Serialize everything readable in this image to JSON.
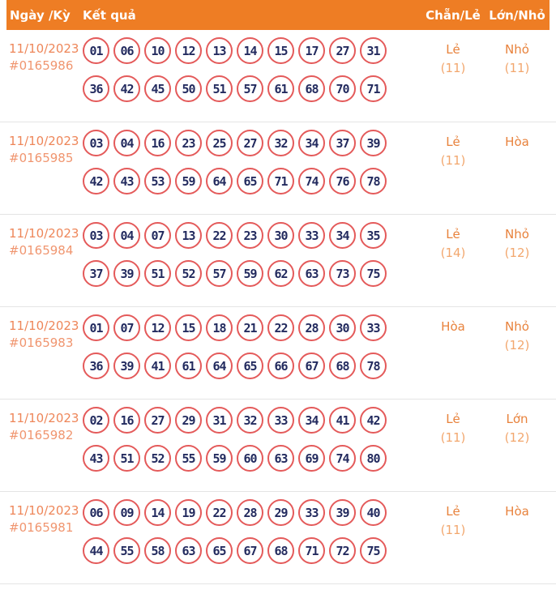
{
  "header": {
    "col_date": "Ngày /Kỳ",
    "col_result": "Kết quả",
    "col_chanle": "Chẵn/Lẻ",
    "col_lonnho": "Lớn/Nhỏ"
  },
  "colors": {
    "header_bg": "#ee7d24",
    "header_text": "#ffffff",
    "ball_border": "#e45a5a",
    "ball_number": "#232b5f",
    "date_text": "#ee8659",
    "value_label": "#e8823c",
    "value_count": "#f2a76e",
    "row_divider": "#e4e4e4"
  },
  "rows": [
    {
      "date": "11/10/2023",
      "draw_id": "#0165986",
      "numbers_line1": [
        "01",
        "06",
        "10",
        "12",
        "13",
        "14",
        "15",
        "17",
        "27",
        "31"
      ],
      "numbers_line2": [
        "36",
        "42",
        "45",
        "50",
        "51",
        "57",
        "61",
        "68",
        "70",
        "71"
      ],
      "chan_le": {
        "label": "Lẻ",
        "count": "(11)"
      },
      "lon_nho": {
        "label": "Nhỏ",
        "count": "(11)"
      }
    },
    {
      "date": "11/10/2023",
      "draw_id": "#0165985",
      "numbers_line1": [
        "03",
        "04",
        "16",
        "23",
        "25",
        "27",
        "32",
        "34",
        "37",
        "39"
      ],
      "numbers_line2": [
        "42",
        "43",
        "53",
        "59",
        "64",
        "65",
        "71",
        "74",
        "76",
        "78"
      ],
      "chan_le": {
        "label": "Lẻ",
        "count": "(11)"
      },
      "lon_nho": {
        "label": "Hòa",
        "count": ""
      }
    },
    {
      "date": "11/10/2023",
      "draw_id": "#0165984",
      "numbers_line1": [
        "03",
        "04",
        "07",
        "13",
        "22",
        "23",
        "30",
        "33",
        "34",
        "35"
      ],
      "numbers_line2": [
        "37",
        "39",
        "51",
        "52",
        "57",
        "59",
        "62",
        "63",
        "73",
        "75"
      ],
      "chan_le": {
        "label": "Lẻ",
        "count": "(14)"
      },
      "lon_nho": {
        "label": "Nhỏ",
        "count": "(12)"
      }
    },
    {
      "date": "11/10/2023",
      "draw_id": "#0165983",
      "numbers_line1": [
        "01",
        "07",
        "12",
        "15",
        "18",
        "21",
        "22",
        "28",
        "30",
        "33"
      ],
      "numbers_line2": [
        "36",
        "39",
        "41",
        "61",
        "64",
        "65",
        "66",
        "67",
        "68",
        "78"
      ],
      "chan_le": {
        "label": "Hòa",
        "count": ""
      },
      "lon_nho": {
        "label": "Nhỏ",
        "count": "(12)"
      }
    },
    {
      "date": "11/10/2023",
      "draw_id": "#0165982",
      "numbers_line1": [
        "02",
        "16",
        "27",
        "29",
        "31",
        "32",
        "33",
        "34",
        "41",
        "42"
      ],
      "numbers_line2": [
        "43",
        "51",
        "52",
        "55",
        "59",
        "60",
        "63",
        "69",
        "74",
        "80"
      ],
      "chan_le": {
        "label": "Lẻ",
        "count": "(11)"
      },
      "lon_nho": {
        "label": "Lớn",
        "count": "(12)"
      }
    },
    {
      "date": "11/10/2023",
      "draw_id": "#0165981",
      "numbers_line1": [
        "06",
        "09",
        "14",
        "19",
        "22",
        "28",
        "29",
        "33",
        "39",
        "40"
      ],
      "numbers_line2": [
        "44",
        "55",
        "58",
        "63",
        "65",
        "67",
        "68",
        "71",
        "72",
        "75"
      ],
      "chan_le": {
        "label": "Lẻ",
        "count": "(11)"
      },
      "lon_nho": {
        "label": "Hòa",
        "count": ""
      }
    }
  ]
}
